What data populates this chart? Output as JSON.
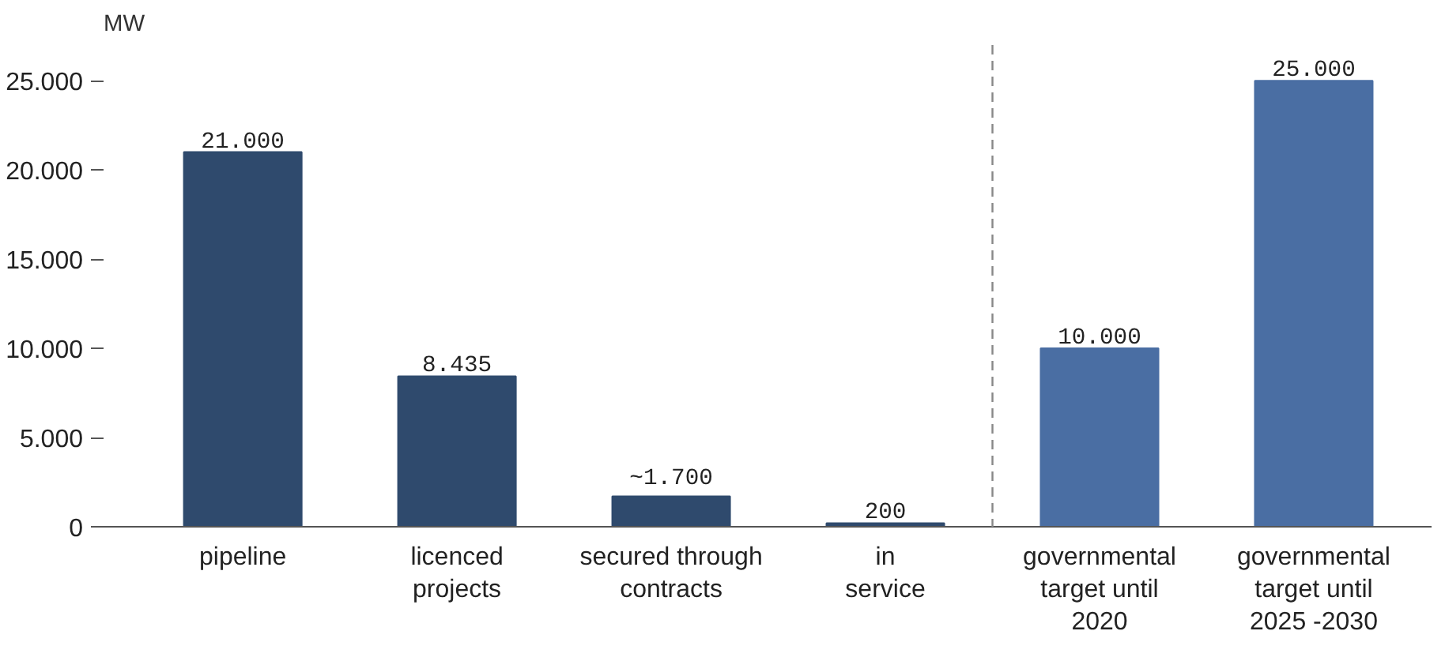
{
  "chart_data": {
    "type": "bar",
    "ylabel": "MW",
    "categories": [
      "pipeline",
      "licenced\nprojects",
      "secured through\ncontracts",
      "in\nservice",
      "governmental\ntarget until\n2020",
      "governmental\ntarget until\n2025 -2030"
    ],
    "values": [
      21000,
      8435,
      1700,
      200,
      10000,
      25000
    ],
    "colors": [
      "#2f4a6d",
      "#2f4a6d",
      "#2f4a6d",
      "#2f4a6d",
      "#4a6ea3",
      "#4a6ea3"
    ],
    "value_labels": [
      "21.000",
      "8.435",
      "~1.700",
      "200",
      "10.000",
      "25.000"
    ],
    "ylim": [
      0,
      25000
    ],
    "yticks": [
      {
        "value": 0,
        "label": "0"
      },
      {
        "value": 5000,
        "label": "5.000"
      },
      {
        "value": 10000,
        "label": "10.000"
      },
      {
        "value": 15000,
        "label": "15.000"
      },
      {
        "value": 20000,
        "label": "20.000"
      },
      {
        "value": 25000,
        "label": "25.000"
      }
    ],
    "grid": false
  }
}
